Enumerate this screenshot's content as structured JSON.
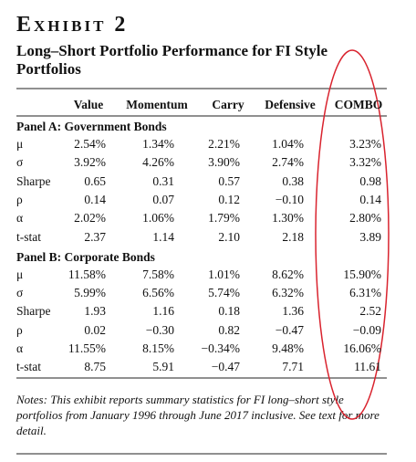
{
  "header": {
    "exhibit": "Exhibit 2",
    "title": "Long–Short Portfolio Performance for FI Style Portfolios"
  },
  "table": {
    "columns": [
      "Value",
      "Momentum",
      "Carry",
      "Defensive",
      "COMBO"
    ],
    "panels": [
      {
        "label": "Panel A: Government Bonds",
        "rows": [
          {
            "label": "μ",
            "cells": [
              "2.54%",
              "1.34%",
              "2.21%",
              "1.04%",
              "3.23%"
            ]
          },
          {
            "label": "σ",
            "cells": [
              "3.92%",
              "4.26%",
              "3.90%",
              "2.74%",
              "3.32%"
            ]
          },
          {
            "label": "Sharpe",
            "cells": [
              "0.65",
              "0.31",
              "0.57",
              "0.38",
              "0.98"
            ]
          },
          {
            "label": "ρ",
            "cells": [
              "0.14",
              "0.07",
              "0.12",
              "−0.10",
              "0.14"
            ]
          },
          {
            "label": "α",
            "cells": [
              "2.02%",
              "1.06%",
              "1.79%",
              "1.30%",
              "2.80%"
            ]
          },
          {
            "label": "t-stat",
            "cells": [
              "2.37",
              "1.14",
              "2.10",
              "2.18",
              "3.89"
            ]
          }
        ]
      },
      {
        "label": "Panel B: Corporate Bonds",
        "rows": [
          {
            "label": "μ",
            "cells": [
              "11.58%",
              "7.58%",
              "1.01%",
              "8.62%",
              "15.90%"
            ]
          },
          {
            "label": "σ",
            "cells": [
              "5.99%",
              "6.56%",
              "5.74%",
              "6.32%",
              "6.31%"
            ]
          },
          {
            "label": "Sharpe",
            "cells": [
              "1.93",
              "1.16",
              "0.18",
              "1.36",
              "2.52"
            ]
          },
          {
            "label": "ρ",
            "cells": [
              "0.02",
              "−0.30",
              "0.82",
              "−0.47",
              "−0.09"
            ]
          },
          {
            "label": "α",
            "cells": [
              "11.55%",
              "8.15%",
              "−0.34%",
              "9.48%",
              "16.06%"
            ]
          },
          {
            "label": "t-stat",
            "cells": [
              "8.75",
              "5.91",
              "−0.47",
              "7.71",
              "11.61"
            ]
          }
        ]
      }
    ]
  },
  "notes": "Notes: This exhibit reports summary statistics for FI long–short style portfolios from January 1996 through June 2017 inclusive. See text for more detail."
}
